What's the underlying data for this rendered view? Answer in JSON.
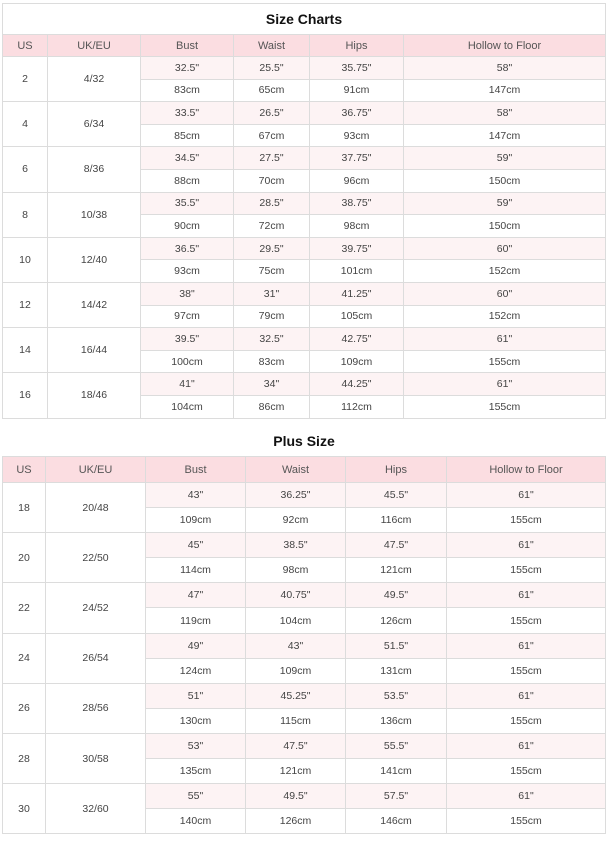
{
  "size_charts": {
    "title": "Size Charts",
    "headers": [
      "US",
      "UK/EU",
      "Bust",
      "Waist",
      "Hips",
      "Hollow to Floor"
    ],
    "rows": [
      {
        "us": "2",
        "ukeu": "4/32",
        "inch": [
          "32.5\"",
          "25.5\"",
          "35.75\"",
          "58\""
        ],
        "cm": [
          "83cm",
          "65cm",
          "91cm",
          "147cm"
        ]
      },
      {
        "us": "4",
        "ukeu": "6/34",
        "inch": [
          "33.5\"",
          "26.5\"",
          "36.75\"",
          "58\""
        ],
        "cm": [
          "85cm",
          "67cm",
          "93cm",
          "147cm"
        ]
      },
      {
        "us": "6",
        "ukeu": "8/36",
        "inch": [
          "34.5\"",
          "27.5\"",
          "37.75\"",
          "59\""
        ],
        "cm": [
          "88cm",
          "70cm",
          "96cm",
          "150cm"
        ]
      },
      {
        "us": "8",
        "ukeu": "10/38",
        "inch": [
          "35.5\"",
          "28.5\"",
          "38.75\"",
          "59\""
        ],
        "cm": [
          "90cm",
          "72cm",
          "98cm",
          "150cm"
        ]
      },
      {
        "us": "10",
        "ukeu": "12/40",
        "inch": [
          "36.5\"",
          "29.5\"",
          "39.75\"",
          "60\""
        ],
        "cm": [
          "93cm",
          "75cm",
          "101cm",
          "152cm"
        ]
      },
      {
        "us": "12",
        "ukeu": "14/42",
        "inch": [
          "38\"",
          "31\"",
          "41.25\"",
          "60\""
        ],
        "cm": [
          "97cm",
          "79cm",
          "105cm",
          "152cm"
        ]
      },
      {
        "us": "14",
        "ukeu": "16/44",
        "inch": [
          "39.5\"",
          "32.5\"",
          "42.75\"",
          "61\""
        ],
        "cm": [
          "100cm",
          "83cm",
          "109cm",
          "155cm"
        ]
      },
      {
        "us": "16",
        "ukeu": "18/46",
        "inch": [
          "41\"",
          "34\"",
          "44.25\"",
          "61\""
        ],
        "cm": [
          "104cm",
          "86cm",
          "112cm",
          "155cm"
        ]
      }
    ]
  },
  "plus_size": {
    "title": "Plus Size",
    "headers": [
      "US",
      "UK/EU",
      "Bust",
      "Waist",
      "Hips",
      "Hollow to Floor"
    ],
    "rows": [
      {
        "us": "18",
        "ukeu": "20/48",
        "inch": [
          "43\"",
          "36.25\"",
          "45.5\"",
          "61\""
        ],
        "cm": [
          "109cm",
          "92cm",
          "116cm",
          "155cm"
        ]
      },
      {
        "us": "20",
        "ukeu": "22/50",
        "inch": [
          "45\"",
          "38.5\"",
          "47.5\"",
          "61\""
        ],
        "cm": [
          "114cm",
          "98cm",
          "121cm",
          "155cm"
        ]
      },
      {
        "us": "22",
        "ukeu": "24/52",
        "inch": [
          "47\"",
          "40.75\"",
          "49.5\"",
          "61\""
        ],
        "cm": [
          "119cm",
          "104cm",
          "126cm",
          "155cm"
        ]
      },
      {
        "us": "24",
        "ukeu": "26/54",
        "inch": [
          "49\"",
          "43\"",
          "51.5\"",
          "61\""
        ],
        "cm": [
          "124cm",
          "109cm",
          "131cm",
          "155cm"
        ]
      },
      {
        "us": "26",
        "ukeu": "28/56",
        "inch": [
          "51\"",
          "45.25\"",
          "53.5\"",
          "61\""
        ],
        "cm": [
          "130cm",
          "115cm",
          "136cm",
          "155cm"
        ]
      },
      {
        "us": "28",
        "ukeu": "30/58",
        "inch": [
          "53\"",
          "47.5\"",
          "55.5\"",
          "61\""
        ],
        "cm": [
          "135cm",
          "121cm",
          "141cm",
          "155cm"
        ]
      },
      {
        "us": "30",
        "ukeu": "32/60",
        "inch": [
          "55\"",
          "49.5\"",
          "57.5\"",
          "61\""
        ],
        "cm": [
          "140cm",
          "126cm",
          "146cm",
          "155cm"
        ]
      }
    ]
  },
  "colors": {
    "header_bg": "#fbdde1",
    "inch_row_bg": "#fdf3f4"
  }
}
